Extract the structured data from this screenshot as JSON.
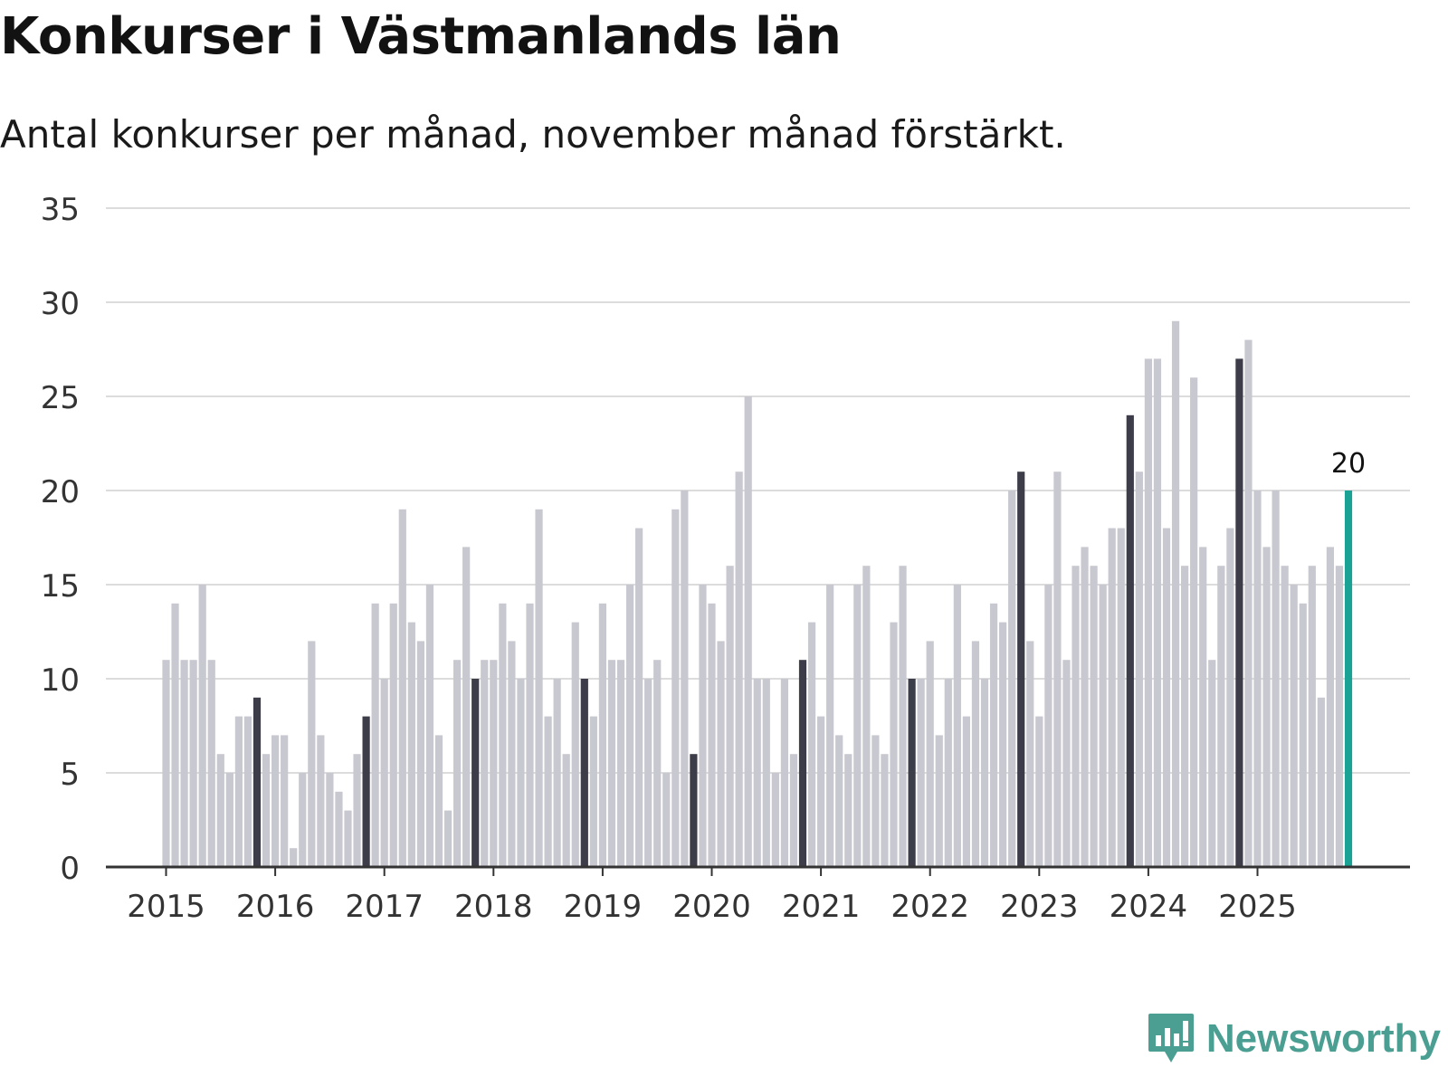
{
  "title": "Konkurser i Västmanlands län",
  "subtitle": "Antal konkurser per månad, november månad förstärkt.",
  "brand": {
    "name": "Newsworthy",
    "color": "#4a9f92"
  },
  "colors": {
    "bar": "#c8c8d0",
    "highlight": "#3d3d4a",
    "latest": "#1aa394",
    "grid": "#dcdcdc",
    "axis": "#333333"
  },
  "chart_data": {
    "type": "bar",
    "title": "Konkurser i Västmanlands län",
    "ylabel": "",
    "xlabel": "",
    "ylim": [
      0,
      35
    ],
    "yticks": [
      0,
      5,
      10,
      15,
      20,
      25,
      30,
      35
    ],
    "start": "2015-01",
    "highlight_month": "November",
    "x_tick_labels": [
      "2015",
      "2016",
      "2017",
      "2018",
      "2019",
      "2020",
      "2021",
      "2022",
      "2023",
      "2024",
      "2025"
    ],
    "values": [
      11,
      14,
      11,
      11,
      15,
      11,
      6,
      5,
      8,
      8,
      9,
      6,
      7,
      7,
      1,
      5,
      12,
      7,
      5,
      4,
      3,
      6,
      8,
      14,
      10,
      14,
      19,
      13,
      12,
      15,
      7,
      3,
      11,
      17,
      10,
      11,
      11,
      14,
      12,
      10,
      14,
      19,
      8,
      10,
      6,
      13,
      10,
      8,
      14,
      11,
      11,
      15,
      18,
      10,
      11,
      5,
      19,
      20,
      6,
      15,
      14,
      12,
      16,
      21,
      25,
      10,
      10,
      5,
      10,
      6,
      11,
      13,
      8,
      15,
      7,
      6,
      15,
      16,
      7,
      6,
      13,
      16,
      10,
      10,
      12,
      7,
      10,
      15,
      8,
      12,
      10,
      14,
      13,
      20,
      21,
      12,
      8,
      15,
      21,
      11,
      16,
      17,
      16,
      15,
      18,
      18,
      24,
      21,
      27,
      27,
      18,
      29,
      16,
      26,
      17,
      11,
      16,
      18,
      27,
      28,
      20,
      17,
      20,
      16,
      15,
      14,
      16,
      9,
      17,
      16,
      20
    ],
    "data_label": "20"
  }
}
